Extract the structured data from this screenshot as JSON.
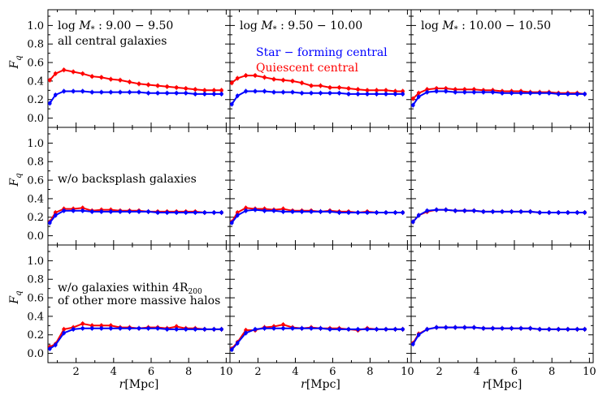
{
  "chart_data": {
    "type": "line",
    "layout": "3x3 panel grid",
    "x": [
      0.6,
      0.9,
      1.35,
      1.85,
      2.35,
      2.85,
      3.35,
      3.85,
      4.35,
      4.85,
      5.35,
      5.85,
      6.35,
      6.85,
      7.35,
      7.85,
      8.35,
      8.85,
      9.35,
      9.75
    ],
    "xlabel": "r[Mpc]",
    "xlim": [
      0.5,
      10.2
    ],
    "xticks": [
      "2",
      "4",
      "6",
      "8",
      "10"
    ],
    "ylabel": "F_q",
    "ylim": [
      -0.1,
      1.17
    ],
    "yticks": [
      "0.0",
      "0.2",
      "0.4",
      "0.6",
      "0.8",
      "1.0"
    ],
    "legend": {
      "placement": "top panel row, middle column",
      "entries": [
        {
          "label": "Star − forming central",
          "color": "#0000ff"
        },
        {
          "label": "Quiescent central",
          "color": "#ff0000"
        }
      ]
    },
    "column_labels": [
      "log M* : 9.00 − 9.50",
      "log M* : 9.50 − 10.00",
      "log M* : 10.00 − 10.50"
    ],
    "row_labels": [
      [
        "all central galaxies"
      ],
      [
        "w/o backsplash galaxies"
      ],
      [
        "w/o galaxies within 4R200",
        "of other more massive halos"
      ]
    ],
    "panels": [
      {
        "row": 0,
        "col": 0,
        "series": [
          {
            "name": "Quiescent central",
            "color": "#ff0000",
            "values": [
              0.41,
              0.48,
              0.52,
              0.5,
              0.48,
              0.45,
              0.44,
              0.42,
              0.41,
              0.39,
              0.37,
              0.36,
              0.35,
              0.34,
              0.33,
              0.32,
              0.31,
              0.3,
              0.3,
              0.3
            ]
          },
          {
            "name": "Star − forming central",
            "color": "#0000ff",
            "values": [
              0.16,
              0.25,
              0.29,
              0.29,
              0.29,
              0.28,
              0.28,
              0.28,
              0.28,
              0.28,
              0.28,
              0.27,
              0.27,
              0.27,
              0.27,
              0.27,
              0.26,
              0.26,
              0.26,
              0.26
            ]
          }
        ]
      },
      {
        "row": 0,
        "col": 1,
        "series": [
          {
            "name": "Quiescent central",
            "color": "#ff0000",
            "values": [
              0.38,
              0.43,
              0.46,
              0.46,
              0.44,
              0.42,
              0.41,
              0.4,
              0.38,
              0.35,
              0.35,
              0.33,
              0.33,
              0.32,
              0.31,
              0.3,
              0.3,
              0.3,
              0.29,
              0.29
            ]
          },
          {
            "name": "Star − forming central",
            "color": "#0000ff",
            "values": [
              0.15,
              0.24,
              0.29,
              0.29,
              0.29,
              0.28,
              0.28,
              0.28,
              0.27,
              0.27,
              0.27,
              0.27,
              0.27,
              0.26,
              0.26,
              0.26,
              0.26,
              0.26,
              0.26,
              0.26
            ]
          }
        ]
      },
      {
        "row": 0,
        "col": 2,
        "series": [
          {
            "name": "Quiescent central",
            "color": "#ff0000",
            "values": [
              0.21,
              0.27,
              0.31,
              0.32,
              0.32,
              0.31,
              0.31,
              0.31,
              0.3,
              0.3,
              0.29,
              0.29,
              0.29,
              0.28,
              0.28,
              0.28,
              0.27,
              0.27,
              0.27,
              0.26
            ]
          },
          {
            "name": "Star − forming central",
            "color": "#0000ff",
            "values": [
              0.14,
              0.23,
              0.28,
              0.29,
              0.29,
              0.28,
              0.28,
              0.28,
              0.28,
              0.28,
              0.27,
              0.27,
              0.27,
              0.27,
              0.27,
              0.27,
              0.26,
              0.26,
              0.26,
              0.26
            ]
          }
        ]
      },
      {
        "row": 1,
        "col": 0,
        "series": [
          {
            "name": "Quiescent central",
            "color": "#ff0000",
            "values": [
              0.15,
              0.25,
              0.29,
              0.29,
              0.3,
              0.27,
              0.28,
              0.28,
              0.27,
              0.27,
              0.27,
              0.26,
              0.26,
              0.26,
              0.26,
              0.26,
              0.26,
              0.25,
              0.25,
              0.25
            ]
          },
          {
            "name": "Star − forming central",
            "color": "#0000ff",
            "values": [
              0.14,
              0.22,
              0.27,
              0.27,
              0.27,
              0.26,
              0.26,
              0.26,
              0.26,
              0.26,
              0.26,
              0.26,
              0.25,
              0.25,
              0.25,
              0.25,
              0.25,
              0.25,
              0.25,
              0.25
            ]
          }
        ]
      },
      {
        "row": 1,
        "col": 1,
        "series": [
          {
            "name": "Quiescent central",
            "color": "#ff0000",
            "values": [
              0.15,
              0.25,
              0.3,
              0.29,
              0.29,
              0.28,
              0.29,
              0.27,
              0.27,
              0.27,
              0.26,
              0.27,
              0.26,
              0.26,
              0.25,
              0.26,
              0.25,
              0.25,
              0.25,
              0.25
            ]
          },
          {
            "name": "Star − forming central",
            "color": "#0000ff",
            "values": [
              0.14,
              0.22,
              0.27,
              0.28,
              0.27,
              0.27,
              0.26,
              0.26,
              0.26,
              0.26,
              0.26,
              0.26,
              0.25,
              0.25,
              0.25,
              0.25,
              0.25,
              0.25,
              0.25,
              0.25
            ]
          }
        ]
      },
      {
        "row": 1,
        "col": 2,
        "series": [
          {
            "name": "Quiescent central",
            "color": "#ff0000",
            "values": [
              0.15,
              0.22,
              0.26,
              0.28,
              0.28,
              0.27,
              0.27,
              0.27,
              0.26,
              0.26,
              0.26,
              0.26,
              0.26,
              0.26,
              0.25,
              0.25,
              0.25,
              0.25,
              0.25,
              0.25
            ]
          },
          {
            "name": "Star − forming central",
            "color": "#0000ff",
            "values": [
              0.15,
              0.22,
              0.27,
              0.28,
              0.28,
              0.27,
              0.27,
              0.27,
              0.26,
              0.26,
              0.26,
              0.26,
              0.26,
              0.26,
              0.25,
              0.25,
              0.25,
              0.25,
              0.25,
              0.25
            ]
          }
        ]
      },
      {
        "row": 2,
        "col": 0,
        "series": [
          {
            "name": "Quiescent central",
            "color": "#ff0000",
            "values": [
              0.07,
              0.1,
              0.26,
              0.28,
              0.32,
              0.3,
              0.3,
              0.3,
              0.28,
              0.28,
              0.27,
              0.28,
              0.28,
              0.27,
              0.29,
              0.27,
              0.27,
              0.26,
              0.26,
              0.26
            ]
          },
          {
            "name": "Star − forming central",
            "color": "#0000ff",
            "values": [
              0.05,
              0.09,
              0.22,
              0.26,
              0.27,
              0.27,
              0.27,
              0.27,
              0.27,
              0.27,
              0.27,
              0.27,
              0.27,
              0.26,
              0.26,
              0.26,
              0.26,
              0.26,
              0.26,
              0.26
            ]
          }
        ]
      },
      {
        "row": 2,
        "col": 1,
        "series": [
          {
            "name": "Quiescent central",
            "color": "#ff0000",
            "values": [
              0.05,
              0.12,
              0.25,
              0.25,
              0.28,
              0.29,
              0.31,
              0.28,
              0.27,
              0.28,
              0.27,
              0.27,
              0.27,
              0.26,
              0.25,
              0.27,
              0.26,
              0.26,
              0.26,
              0.26
            ]
          },
          {
            "name": "Star − forming central",
            "color": "#0000ff",
            "values": [
              0.04,
              0.11,
              0.22,
              0.26,
              0.27,
              0.27,
              0.27,
              0.27,
              0.27,
              0.27,
              0.27,
              0.26,
              0.26,
              0.26,
              0.26,
              0.26,
              0.26,
              0.26,
              0.26,
              0.26
            ]
          }
        ]
      },
      {
        "row": 2,
        "col": 2,
        "series": [
          {
            "name": "Quiescent central",
            "color": "#ff0000",
            "values": [
              0.11,
              0.21,
              0.26,
              0.28,
              0.28,
              0.28,
              0.28,
              0.28,
              0.27,
              0.27,
              0.27,
              0.27,
              0.27,
              0.27,
              0.26,
              0.26,
              0.26,
              0.26,
              0.26,
              0.26
            ]
          },
          {
            "name": "Star − forming central",
            "color": "#0000ff",
            "values": [
              0.1,
              0.2,
              0.26,
              0.28,
              0.28,
              0.28,
              0.28,
              0.28,
              0.27,
              0.27,
              0.27,
              0.27,
              0.27,
              0.27,
              0.26,
              0.26,
              0.26,
              0.26,
              0.26,
              0.26
            ]
          }
        ]
      }
    ]
  }
}
